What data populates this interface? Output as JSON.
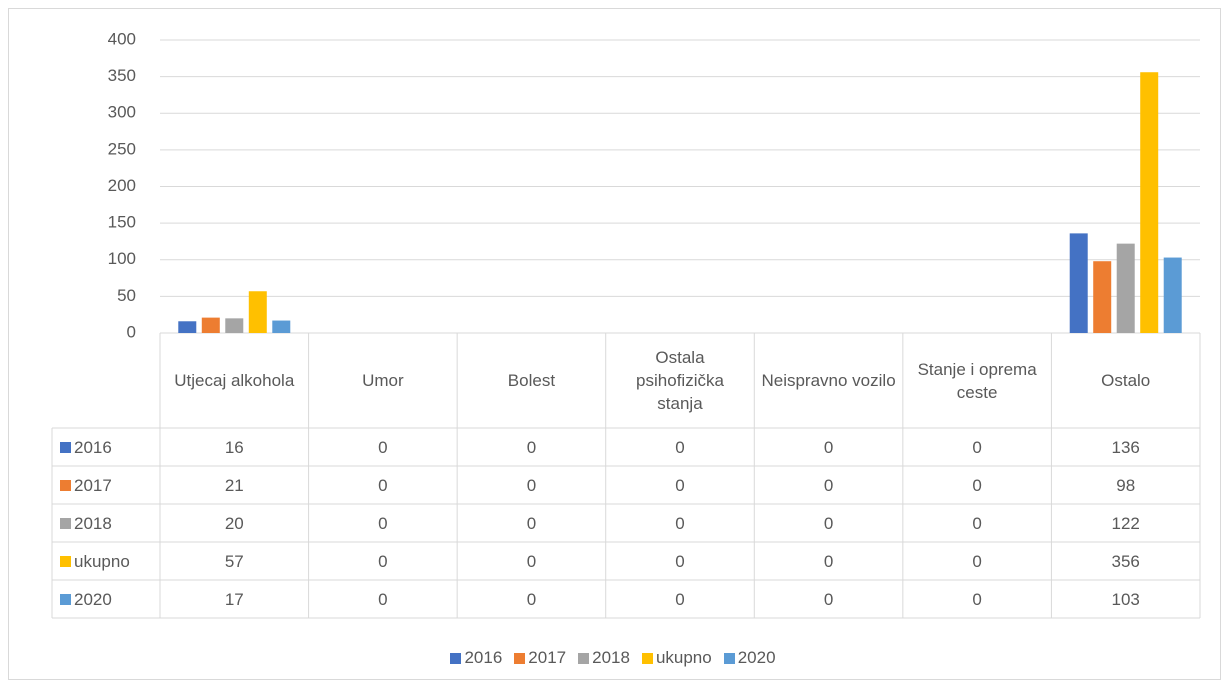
{
  "chart_data": {
    "type": "bar",
    "categories": [
      "Utjecaj alkohola",
      "Umor",
      "Bolest",
      "Ostala psihofizička stanja",
      "Neispravno vozilo",
      "Stanje i oprema ceste",
      "Ostalo"
    ],
    "series": [
      {
        "name": "2016",
        "color": "#4472c4",
        "values": [
          16,
          0,
          0,
          0,
          0,
          0,
          136
        ]
      },
      {
        "name": "2017",
        "color": "#ed7d31",
        "values": [
          21,
          0,
          0,
          0,
          0,
          0,
          98
        ]
      },
      {
        "name": "2018",
        "color": "#a5a5a5",
        "values": [
          20,
          0,
          0,
          0,
          0,
          0,
          122
        ]
      },
      {
        "name": "ukupno",
        "color": "#ffc000",
        "values": [
          57,
          0,
          0,
          0,
          0,
          0,
          356
        ]
      },
      {
        "name": "2020",
        "color": "#5b9bd5",
        "values": [
          17,
          0,
          0,
          0,
          0,
          0,
          103
        ]
      }
    ],
    "ylim": [
      0,
      400
    ],
    "yticks": [
      0,
      50,
      100,
      150,
      200,
      250,
      300,
      350,
      400
    ],
    "grid": true,
    "legend": "bottom",
    "data_table": true
  }
}
